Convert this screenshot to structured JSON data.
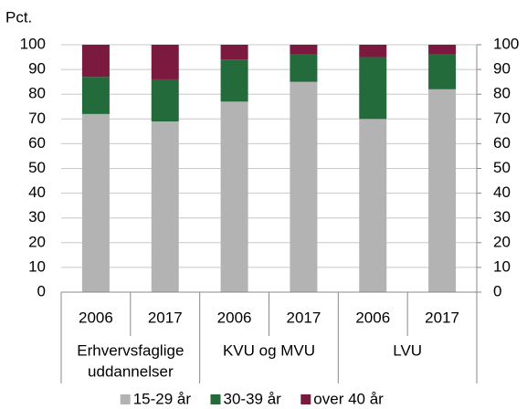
{
  "chart_data": {
    "type": "stacked_bar",
    "y_label": "Pct.",
    "categories": [
      "2006",
      "2017",
      "2006",
      "2017",
      "2006",
      "2017"
    ],
    "groups": [
      {
        "lines": [
          "Erhvervsfaglige",
          "uddannelser"
        ],
        "size": 2
      },
      {
        "lines": [
          "KVU og MVU"
        ],
        "size": 2
      },
      {
        "lines": [
          "LVU"
        ],
        "size": 2
      }
    ],
    "series": [
      {
        "name": "15-29 år",
        "color": "#b3b3b3",
        "values": [
          72,
          69,
          77,
          85,
          70,
          82
        ]
      },
      {
        "name": "30-39 år",
        "color": "#236b3a",
        "values": [
          15,
          17,
          17,
          11,
          25,
          14
        ]
      },
      {
        "name": "over 40 år",
        "color": "#7b1a3e",
        "values": [
          13,
          14,
          6,
          4,
          5,
          4
        ]
      }
    ],
    "ylim": [
      0,
      100
    ],
    "yticks": [
      0,
      10,
      20,
      30,
      40,
      50,
      60,
      70,
      80,
      90,
      100
    ],
    "y2lim": [
      0,
      100
    ],
    "y2ticks": [
      0,
      10,
      20,
      30,
      40,
      50,
      60,
      70,
      80,
      90,
      100
    ],
    "grid": true,
    "legend": "bottom"
  }
}
